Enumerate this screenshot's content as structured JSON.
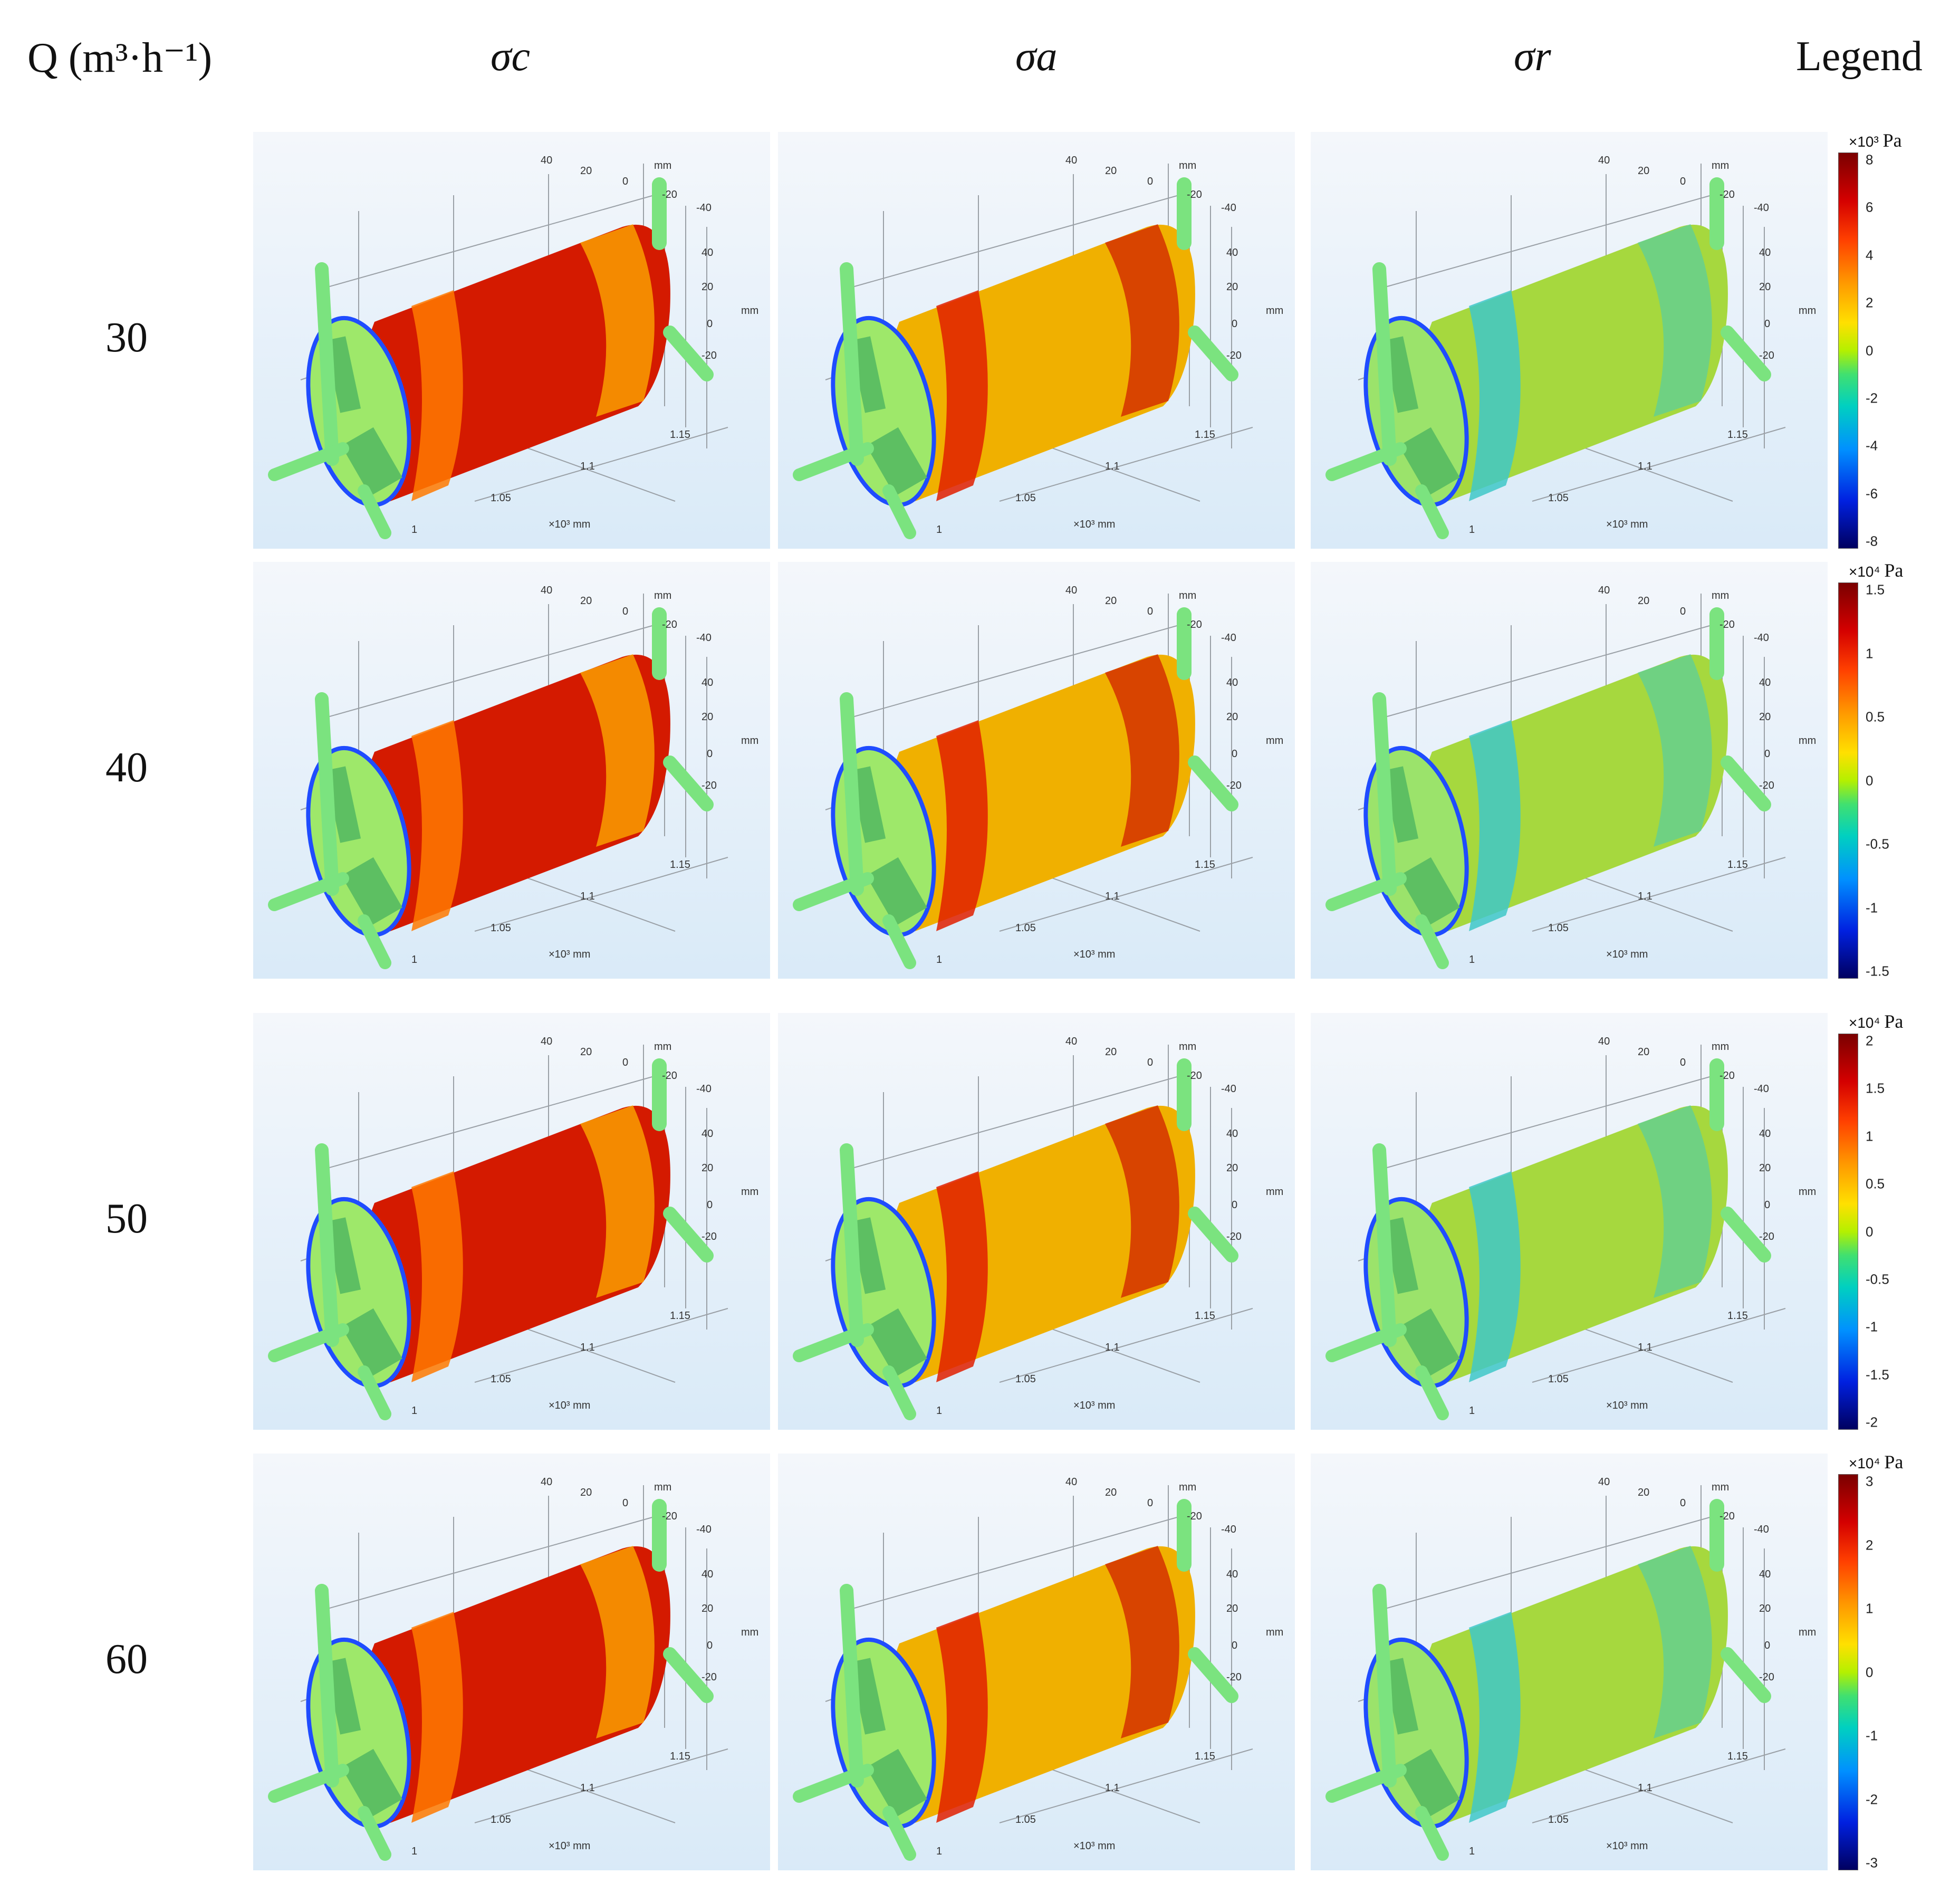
{
  "headers": {
    "q": "Q (m³·h⁻¹)",
    "sigma_c": "σc",
    "sigma_a": "σa",
    "sigma_r": "σr",
    "legend": "Legend"
  },
  "axis_text": {
    "mm": "mm",
    "x_unit": "×10³ mm",
    "y_ticks": [
      "40",
      "20",
      "0",
      "-20",
      "-40"
    ],
    "z_ticks": [
      "40",
      "20",
      "0",
      "-20"
    ],
    "x_ticks": [
      "1",
      "1.05",
      "1.1",
      "1.15"
    ]
  },
  "rows": [
    {
      "q": "30",
      "legend": {
        "unit": "×10³",
        "pa": "Pa",
        "ticks": [
          "8",
          "6",
          "4",
          "2",
          "0",
          "-2",
          "-4",
          "-6",
          "-8"
        ]
      }
    },
    {
      "q": "40",
      "legend": {
        "unit": "×10⁴",
        "pa": "Pa",
        "ticks": [
          "1.5",
          "1",
          "0.5",
          "0",
          "-0.5",
          "-1",
          "-1.5"
        ]
      }
    },
    {
      "q": "50",
      "legend": {
        "unit": "×10⁴",
        "pa": "Pa",
        "ticks": [
          "2",
          "1.5",
          "1",
          "0.5",
          "0",
          "-0.5",
          "-1",
          "-1.5",
          "-2"
        ]
      }
    },
    {
      "q": "60",
      "legend": {
        "unit": "×10⁴",
        "pa": "Pa",
        "ticks": [
          "3",
          "2",
          "1",
          "0",
          "-1",
          "-2",
          "-3"
        ]
      }
    }
  ],
  "colors": {
    "panel_bg_top": "#f4f7fb",
    "panel_bg_bottom": "#d9eaf8",
    "fitting": "#7be37f",
    "sigma_c_body": "#d41a00",
    "sigma_a_body": "#f0b000",
    "sigma_r_body": "#a6d83e"
  }
}
